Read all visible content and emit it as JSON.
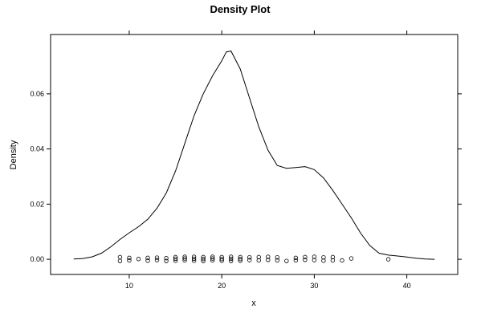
{
  "chart_data": {
    "type": "line",
    "title": "Density Plot",
    "xlabel": "x",
    "ylabel": "Density",
    "xlim": [
      1.5,
      45.5
    ],
    "ylim": [
      -0.0055,
      0.0815
    ],
    "x_ticks": [
      10,
      20,
      30,
      40
    ],
    "y_ticks": [
      0.0,
      0.02,
      0.04,
      0.06
    ],
    "y_tick_labels": [
      "0.00",
      "0.02",
      "0.04",
      "0.06"
    ],
    "series": [
      {
        "x": [
          4,
          5,
          6,
          7,
          8,
          9,
          10,
          11,
          12,
          13,
          14,
          15,
          16,
          17,
          18,
          19,
          20,
          20.5,
          21,
          22,
          23,
          24,
          25,
          26,
          27,
          28,
          29,
          30,
          31,
          32,
          33,
          34,
          35,
          36,
          37,
          38,
          39,
          40,
          41,
          42,
          43
        ],
        "y": [
          0.0001,
          0.0003,
          0.0009,
          0.0022,
          0.0045,
          0.0072,
          0.0096,
          0.0118,
          0.0145,
          0.0185,
          0.024,
          0.032,
          0.042,
          0.052,
          0.06,
          0.0665,
          0.072,
          0.0752,
          0.0755,
          0.069,
          0.0585,
          0.048,
          0.0395,
          0.034,
          0.033,
          0.0333,
          0.0336,
          0.0325,
          0.0295,
          0.025,
          0.02,
          0.015,
          0.0095,
          0.005,
          0.0022,
          0.0015,
          0.0012,
          0.0008,
          0.0004,
          0.0001,
          0.0
        ]
      }
    ],
    "rug_points": {
      "x": [
        9,
        9,
        10,
        10,
        11,
        12,
        12,
        13,
        13,
        14,
        14,
        15,
        15,
        15,
        16,
        16,
        16,
        17,
        17,
        17,
        18,
        18,
        18,
        19,
        19,
        19,
        20,
        20,
        20,
        21,
        21,
        21,
        22,
        22,
        22,
        23,
        23,
        24,
        24,
        25,
        25,
        26,
        26,
        27,
        28,
        28,
        29,
        29,
        30,
        30,
        31,
        31,
        32,
        32,
        33,
        34,
        38
      ],
      "y": [
        0.0008,
        -0.0006,
        0.0005,
        -0.0004,
        0.0001,
        0.0005,
        -0.0005,
        0.0006,
        -0.0003,
        0.0004,
        -0.0006,
        0.0008,
        0.0002,
        -0.0005,
        0.0009,
        0.0003,
        -0.0004,
        0.0009,
        0.0002,
        -0.0005,
        0.0008,
        0.0001,
        -0.0006,
        0.0009,
        0.0003,
        -0.0004,
        0.0008,
        0.0001,
        -0.0005,
        0.0009,
        0.0002,
        -0.0006,
        0.0008,
        0.0001,
        -0.0005,
        0.0007,
        -0.0003,
        0.0008,
        -0.0004,
        0.0009,
        -0.0002,
        0.0007,
        -0.0004,
        -0.0006,
        0.0005,
        -0.0004,
        0.0008,
        -0.0002,
        0.0009,
        -0.0003,
        0.0007,
        -0.0005,
        0.0008,
        -0.0004,
        -0.0004,
        0.0003,
        0.0
      ]
    },
    "grid": false,
    "legend": "none"
  }
}
